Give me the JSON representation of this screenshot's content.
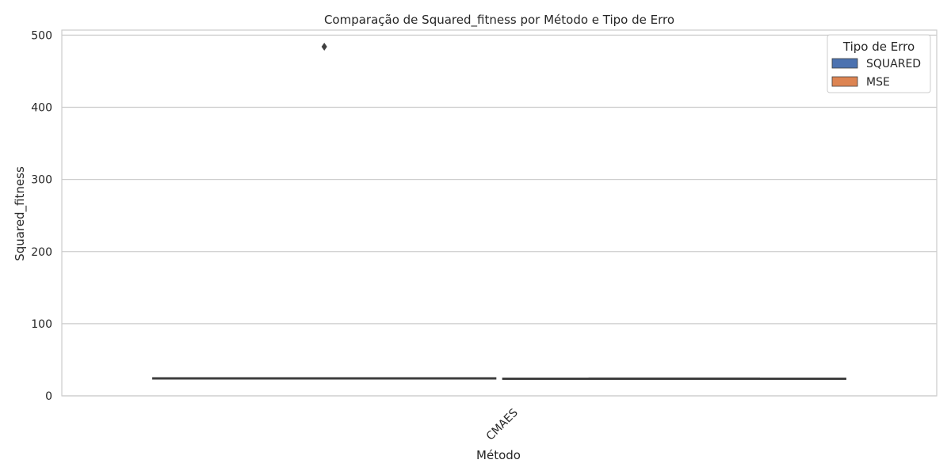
{
  "chart_data": {
    "type": "box",
    "title": "Comparação de Squared_fitness por Método e Tipo de Erro",
    "xlabel": "Método",
    "ylabel": "Squared_fitness",
    "categories": [
      "CMAES"
    ],
    "ylim": [
      0,
      507
    ],
    "yticks": [
      0,
      100,
      200,
      300,
      400,
      500
    ],
    "grid": "horizontal",
    "legend": {
      "title": "Tipo de Erro",
      "placement": "top-right",
      "entries": [
        {
          "label": "SQUARED",
          "color": "#4c72b0"
        },
        {
          "label": "MSE",
          "color": "#dd8452"
        }
      ]
    },
    "series": [
      {
        "name": "SQUARED",
        "color": "#4c72b0",
        "boxes": [
          {
            "category": "CMAES",
            "whisker_low": 24,
            "q1": 24,
            "median": 24.5,
            "q3": 25,
            "whisker_high": 25,
            "outliers": [
              484
            ]
          }
        ]
      },
      {
        "name": "MSE",
        "color": "#dd8452",
        "boxes": [
          {
            "category": "CMAES",
            "whisker_low": 23.5,
            "q1": 23.5,
            "median": 24,
            "q3": 24.5,
            "whisker_high": 24.5,
            "outliers": []
          }
        ]
      }
    ]
  }
}
